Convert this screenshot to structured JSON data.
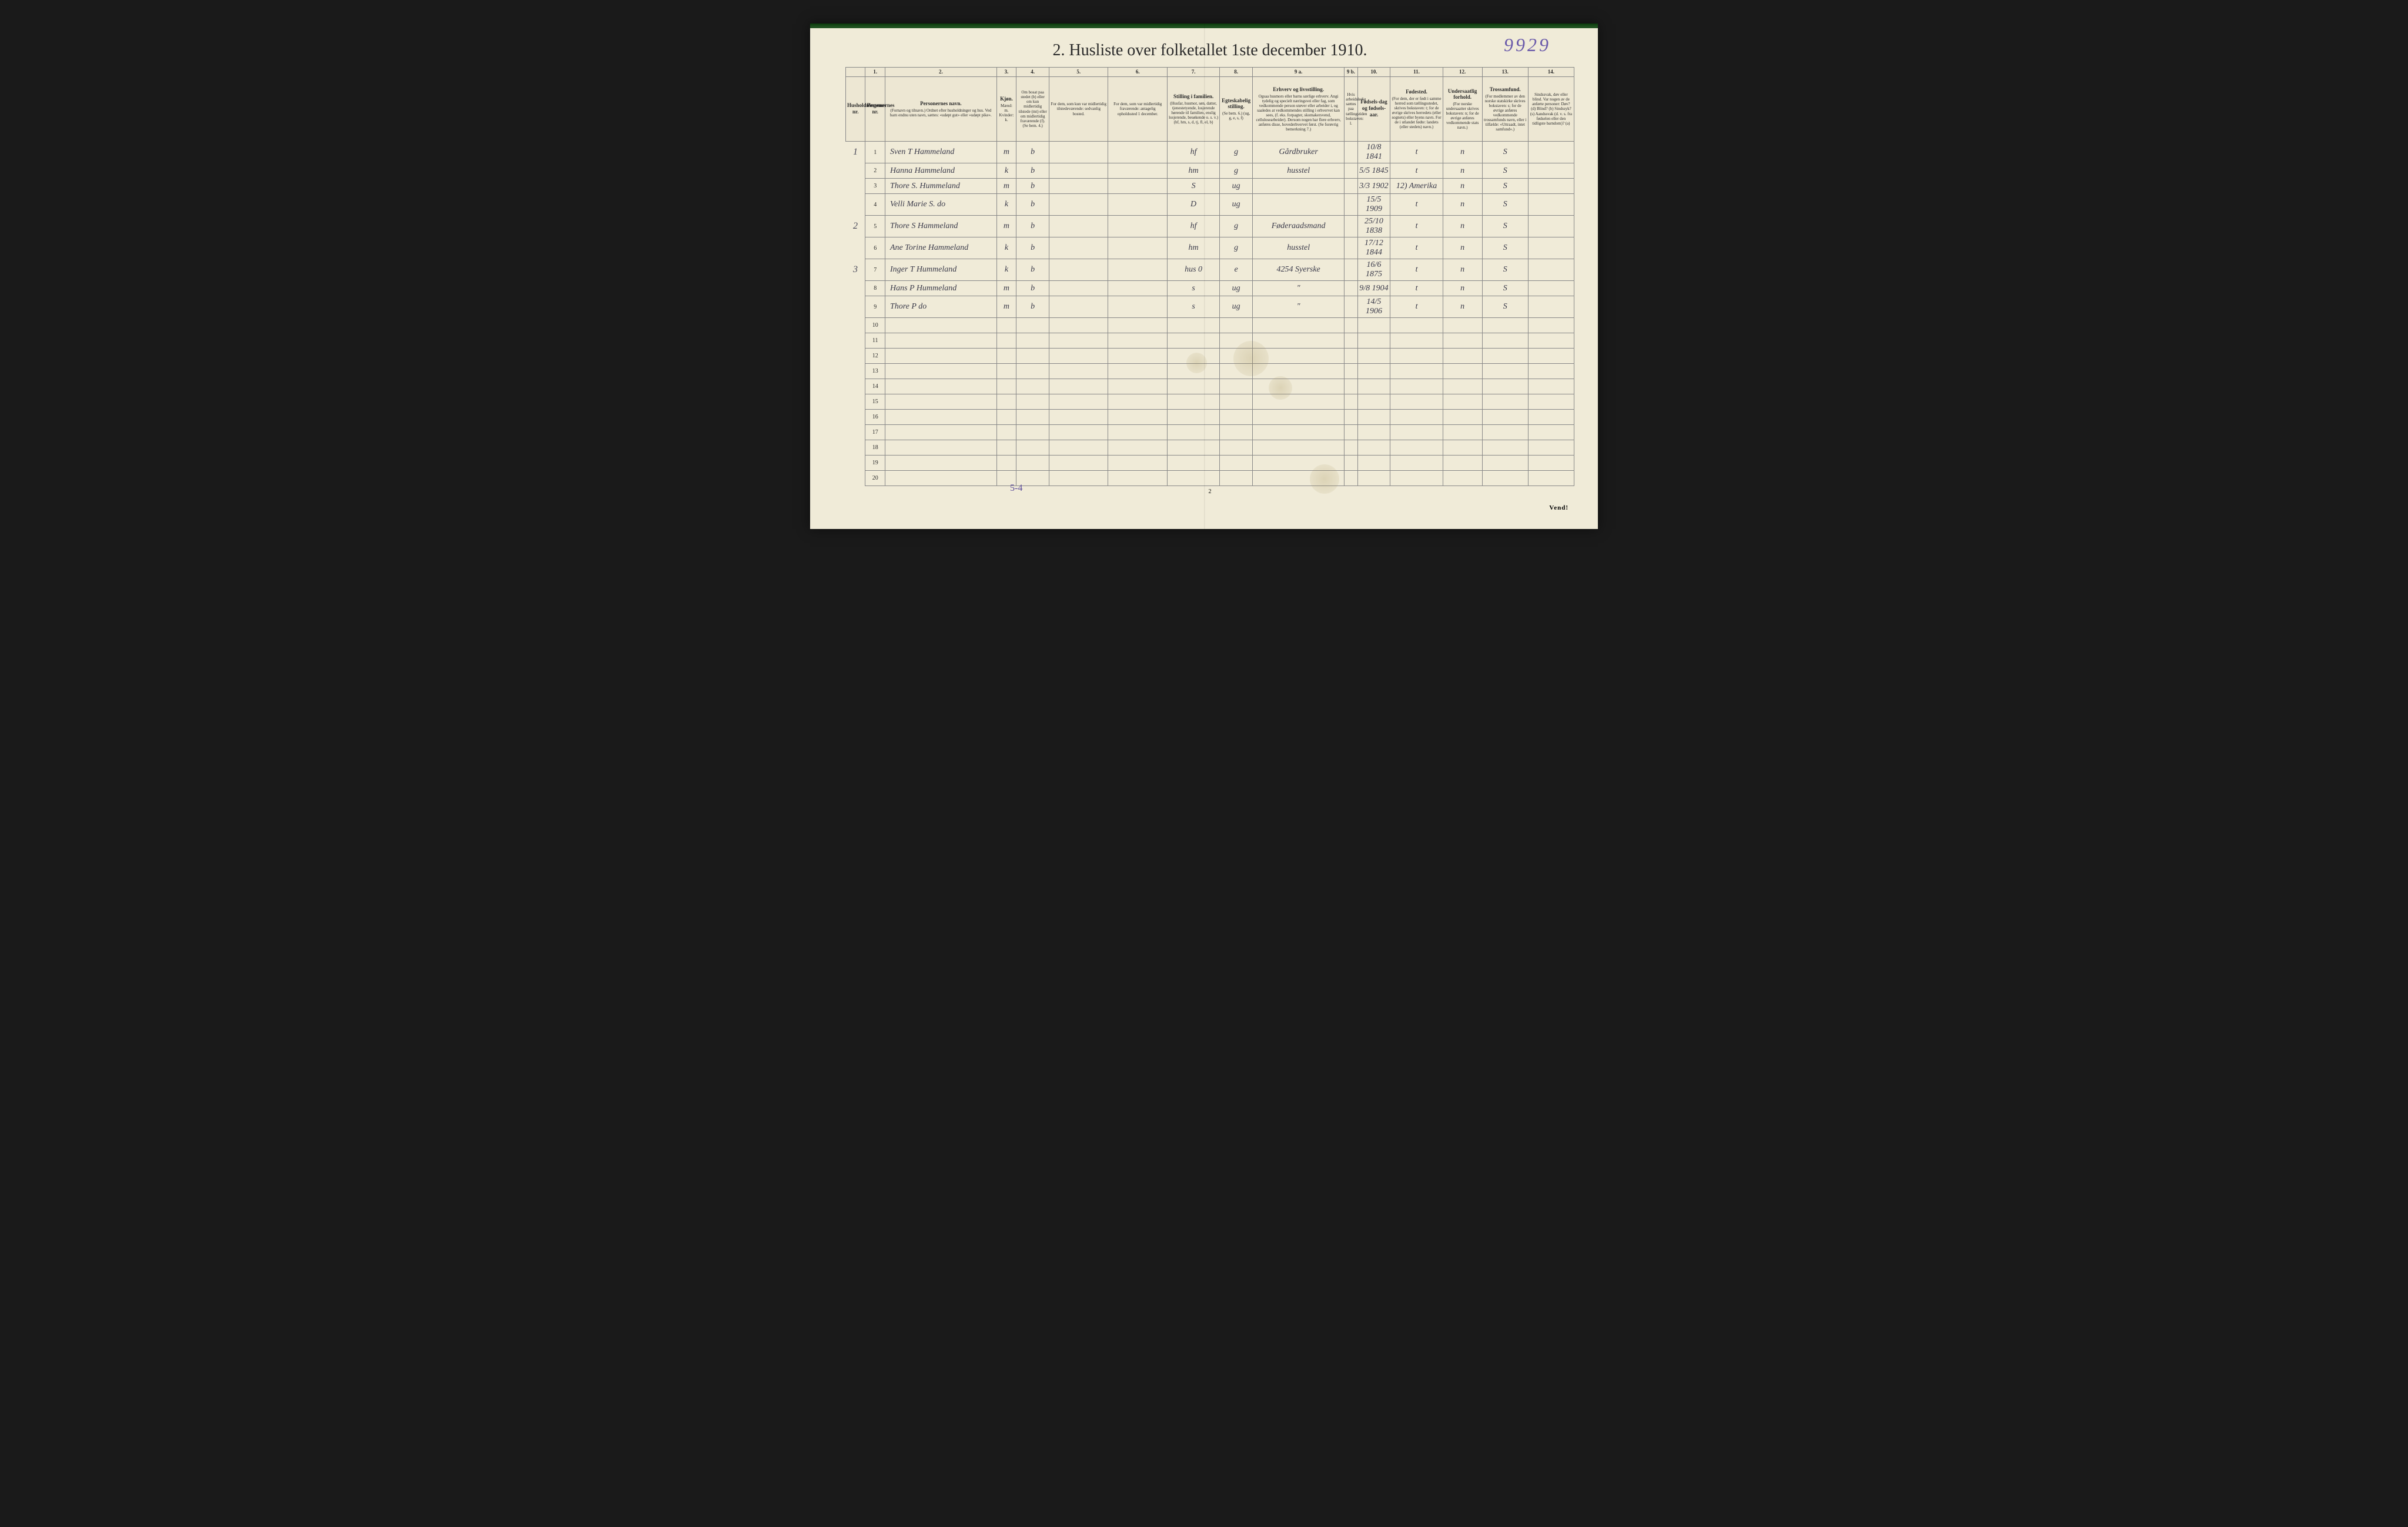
{
  "page": {
    "handwritten_top_right": "9929",
    "title": "2.  Husliste over folketallet 1ste december 1910.",
    "page_number_bottom": "2",
    "vend_label": "Vend!",
    "footer_tally": "5-4",
    "background_color": "#f0ebd8",
    "ink_color": "#3a3a4a",
    "accent_color": "#6a5aaa"
  },
  "columns": {
    "widths_pct": [
      3,
      3,
      17,
      3,
      5,
      9,
      9,
      8,
      5,
      14,
      2,
      5,
      8,
      6,
      7,
      7
    ],
    "numbers": [
      "",
      "1.",
      "2.",
      "3.",
      "4.",
      "5.",
      "6.",
      "7.",
      "8.",
      "9 a.",
      "9 b.",
      "10.",
      "11.",
      "12.",
      "13.",
      "14."
    ],
    "headers": [
      {
        "title": "Husholdningenes nr.",
        "sub": ""
      },
      {
        "title": "Personernes nr.",
        "sub": ""
      },
      {
        "title": "Personernes navn.",
        "sub": "(Fornavn og tilnavn.)\nOrdnet efter husholdninger og hus.\nVed barn endnu uten navn, sættes: «udøpt gut» eller «udøpt pike»."
      },
      {
        "title": "Kjøn.",
        "sub": "Mænd: m.  Kvinder: k."
      },
      {
        "title": "",
        "sub": "Om bosat paa stedet (b) eller om kun midlertidig tilstede (mt) eller om midlertidig fraværende (f). (Se bem. 4.)"
      },
      {
        "title": "",
        "sub": "For dem, som kun var midlertidig tilstedeværende: sedvanlig bosted."
      },
      {
        "title": "",
        "sub": "For dem, som var midlertidig fraværende: antagelig opholdssted 1 december."
      },
      {
        "title": "Stilling i familien.",
        "sub": "(Husfar, husmor, søn, datter, tjenestetyende, losjerende hørende til familien, enslig losjerende, besøkende o. s. v.) (hf, hm, s, d, tj, fl, el, b)"
      },
      {
        "title": "Egteskabelig stilling.",
        "sub": "(Se bem. 6.) (ug, g, e, s, f)"
      },
      {
        "title": "Erhverv og livsstilling.",
        "sub": "Ogsaa husmors eller barns særlige erhverv. Angi tydelig og specielt næringsvei eller fag, som vedkommende person utøver eller arbeider i, og saaledes at vedkommendes stilling i erhvervet kan sees, (f. eks. forpagter, skomakersvend, cellulosearbeider). Dersom nogen har flere erhverv, anføres disse, hovederhvervet først. (Se forøvrig bemerkning 7.)"
      },
      {
        "title": "",
        "sub": "Hvis arbeidsledig sættes paa tællingstiden bokstaven: l."
      },
      {
        "title": "Fødsels-dag og fødsels-aar.",
        "sub": ""
      },
      {
        "title": "Fødested.",
        "sub": "(For dem, der er født i samme herred som tællingsstedet, skrives bokstaven: t; for de øvrige skrives herredets (eller sognets) eller byens navn. For de i utlandet fødte: landets (eller stedets) navn.)"
      },
      {
        "title": "Undersaatlig forhold.",
        "sub": "(For norske undersaatter skrives bokstaven: n; for de øvrige anføres vedkommende stats navn.)"
      },
      {
        "title": "Trossamfund.",
        "sub": "(For medlemmer av den norske statskirke skrives bokstaven: s; for de øvrige anføres vedkommende trossamfunds navn, eller i tilfælde: «Uttraadt, intet samfund».)"
      },
      {
        "title": "",
        "sub": "Sindssvak, døv eller blind. Var nogen av de anførte personer: Døv? (d) Blind? (b) Sindssyk? (s) Aandssvak (d. v. s. fra fødselen eller den tidligste barndom)? (a)"
      }
    ]
  },
  "rows": [
    {
      "margin": "1",
      "n": "1",
      "name": "Sven T Hammeland",
      "sex": "m",
      "res": "b",
      "c5": "",
      "c6": "",
      "fam": "hf",
      "mar": "g",
      "occ": "Gårdbruker",
      "c9b": "",
      "dob": "10/8 1841",
      "birthplace": "t",
      "nat": "n",
      "rel": "S",
      "c14": ""
    },
    {
      "margin": "",
      "n": "2",
      "name": "Hanna Hammeland",
      "sex": "k",
      "res": "b",
      "c5": "",
      "c6": "",
      "fam": "hm",
      "mar": "g",
      "occ": "husstel",
      "c9b": "",
      "dob": "5/5 1845",
      "birthplace": "t",
      "nat": "n",
      "rel": "S",
      "c14": ""
    },
    {
      "margin": "",
      "n": "3",
      "name": "Thore S. Hummeland",
      "sex": "m",
      "res": "b",
      "c5": "",
      "c6": "",
      "fam": "S",
      "mar": "ug",
      "occ": "",
      "c9b": "",
      "dob": "3/3 1902",
      "birthplace": "12) Amerika",
      "nat": "n",
      "rel": "S",
      "c14": ""
    },
    {
      "margin": "",
      "n": "4",
      "name": "Velli Marie S. do",
      "sex": "k",
      "res": "b",
      "c5": "",
      "c6": "",
      "fam": "D",
      "mar": "ug",
      "occ": "",
      "c9b": "",
      "dob": "15/5 1909",
      "birthplace": "t",
      "nat": "n",
      "rel": "S",
      "c14": ""
    },
    {
      "margin": "2",
      "n": "5",
      "name": "Thore S Hammeland",
      "sex": "m",
      "res": "b",
      "c5": "",
      "c6": "",
      "fam": "hf",
      "mar": "g",
      "occ": "Føderaadsmand",
      "c9b": "",
      "dob": "25/10 1838",
      "birthplace": "t",
      "nat": "n",
      "rel": "S",
      "c14": ""
    },
    {
      "margin": "",
      "n": "6",
      "name": "Ane Torine Hammeland",
      "sex": "k",
      "res": "b",
      "c5": "",
      "c6": "",
      "fam": "hm",
      "mar": "g",
      "occ": "husstel",
      "c9b": "",
      "dob": "17/12 1844",
      "birthplace": "t",
      "nat": "n",
      "rel": "S",
      "c14": ""
    },
    {
      "margin": "3",
      "n": "7",
      "name": "Inger T Hummeland",
      "sex": "k",
      "res": "b",
      "c5": "",
      "c6": "",
      "fam": "hus 0",
      "mar": "e",
      "occ": "4254  Syerske",
      "c9b": "",
      "dob": "16/6 1875",
      "birthplace": "t",
      "nat": "n",
      "rel": "S",
      "c14": ""
    },
    {
      "margin": "",
      "n": "8",
      "name": "Hans P Hummeland",
      "sex": "m",
      "res": "b",
      "c5": "",
      "c6": "",
      "fam": "s",
      "mar": "ug",
      "occ": "\"",
      "c9b": "",
      "dob": "9/8 1904",
      "birthplace": "t",
      "nat": "n",
      "rel": "S",
      "c14": ""
    },
    {
      "margin": "",
      "n": "9",
      "name": "Thore P   do",
      "sex": "m",
      "res": "b",
      "c5": "",
      "c6": "",
      "fam": "s",
      "mar": "ug",
      "occ": "\"",
      "c9b": "",
      "dob": "14/5 1906",
      "birthplace": "t",
      "nat": "n",
      "rel": "S",
      "c14": ""
    }
  ],
  "empty_row_numbers": [
    "10",
    "11",
    "12",
    "13",
    "14",
    "15",
    "16",
    "17",
    "18",
    "19",
    "20"
  ]
}
